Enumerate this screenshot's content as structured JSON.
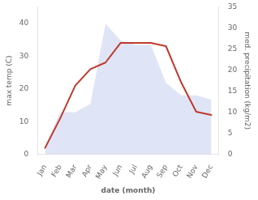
{
  "chart_data": {
    "type": "line",
    "xlabel": "date (month)",
    "ylabel": "max temp (C)",
    "y2label": "med. precipitation (kg/m2)",
    "categories": [
      "Jan",
      "Feb",
      "Mar",
      "Apr",
      "May",
      "Jun",
      "Jul",
      "Aug",
      "Sep",
      "Oct",
      "Nov",
      "Dec"
    ],
    "series": [
      {
        "type": "area",
        "color": "#b8c5ea",
        "axis": "y2",
        "values": [
          2,
          10,
          10,
          12,
          31,
          27,
          26,
          26,
          17,
          14,
          14,
          13
        ]
      },
      {
        "type": "line",
        "color": "#c0392b",
        "values": [
          2,
          11,
          21,
          26,
          28,
          34,
          34,
          34,
          33,
          22,
          13,
          12
        ]
      }
    ],
    "ylim": [
      0,
      45
    ],
    "yticks": [
      0,
      10,
      20,
      30,
      40
    ],
    "y2lim": [
      0,
      35
    ],
    "y2ticks": [
      0,
      5,
      10,
      15,
      20,
      25,
      30,
      35
    ],
    "grid": false
  }
}
